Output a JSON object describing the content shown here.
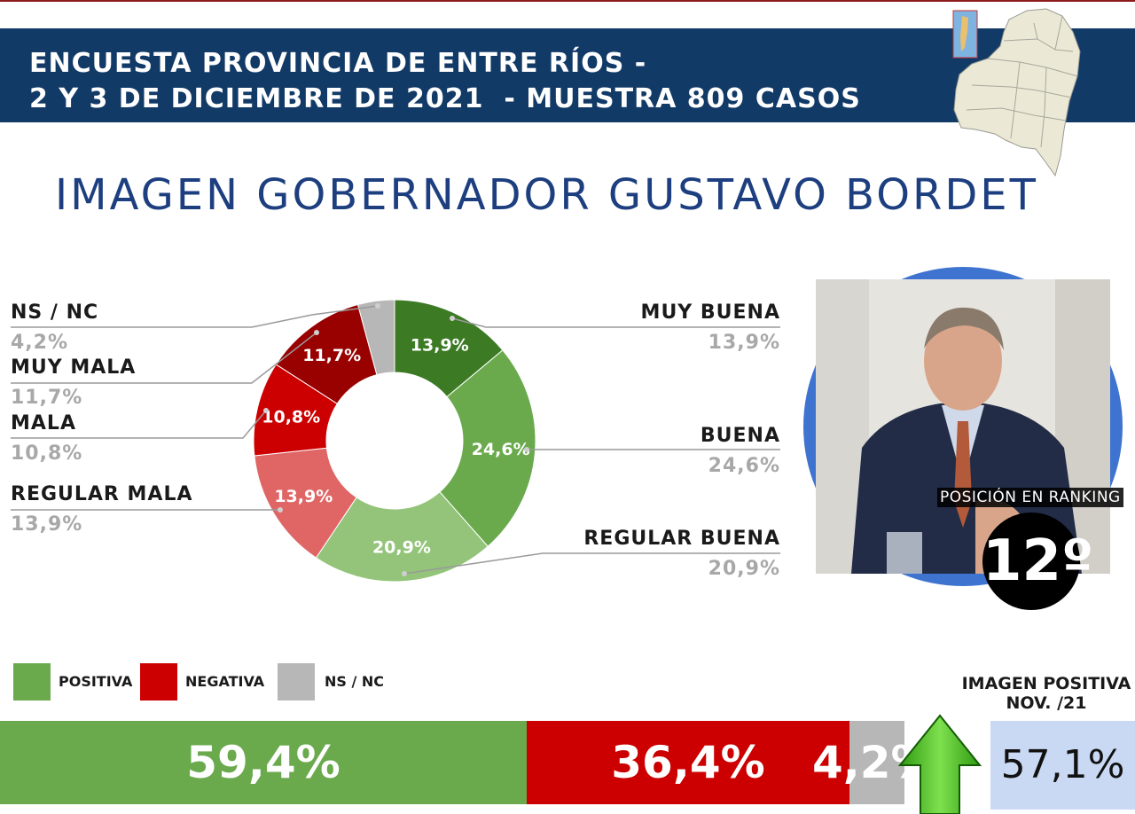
{
  "header": {
    "line1": "ENCUESTA PROVINCIA DE ENTRE RÍOS -",
    "line2": "2 Y 3 DE DICIEMBRE DE 2021  - MUESTRA 809 CASOS"
  },
  "title": "IMAGEN GOBERNADOR  GUSTAVO BORDET",
  "chart_data": [
    {
      "type": "pie",
      "variant": "donut",
      "categories": [
        "MUY BUENA",
        "BUENA",
        "REGULAR BUENA",
        "REGULAR MALA",
        "MALA",
        "MUY MALA",
        "NS / NC"
      ],
      "values": [
        13.9,
        24.6,
        20.9,
        13.9,
        10.8,
        11.7,
        4.2
      ],
      "value_labels": [
        "13,9%",
        "24,6%",
        "20,9%",
        "13,9%",
        "10,8%",
        "11,7%",
        "4,2%"
      ],
      "colors": [
        "#3c7a24",
        "#6aaa4d",
        "#93c47a",
        "#e06666",
        "#cc0000",
        "#990000",
        "#b7b7b7"
      ],
      "title": ""
    },
    {
      "type": "bar",
      "orientation": "horizontal-stacked",
      "categories": [
        "POSITIVA",
        "NEGATIVA",
        "NS / NC"
      ],
      "values": [
        59.4,
        36.4,
        4.2
      ],
      "value_labels": [
        "59,4%",
        "36,4%",
        "4,2%"
      ],
      "colors": [
        "#6aaa4d",
        "#cc0000",
        "#b7b7b7"
      ],
      "legend": "top-left"
    }
  ],
  "ranking": {
    "label": "POSICIÓN EN RANKING",
    "value": "12º"
  },
  "imagen_positiva": {
    "title_line1": "IMAGEN POSITIVA",
    "title_line2": "NOV. /21",
    "value": "57,1%"
  },
  "colors": {
    "banner": "#123a67",
    "title": "#1d3f80",
    "ring": "#3f73d0"
  }
}
